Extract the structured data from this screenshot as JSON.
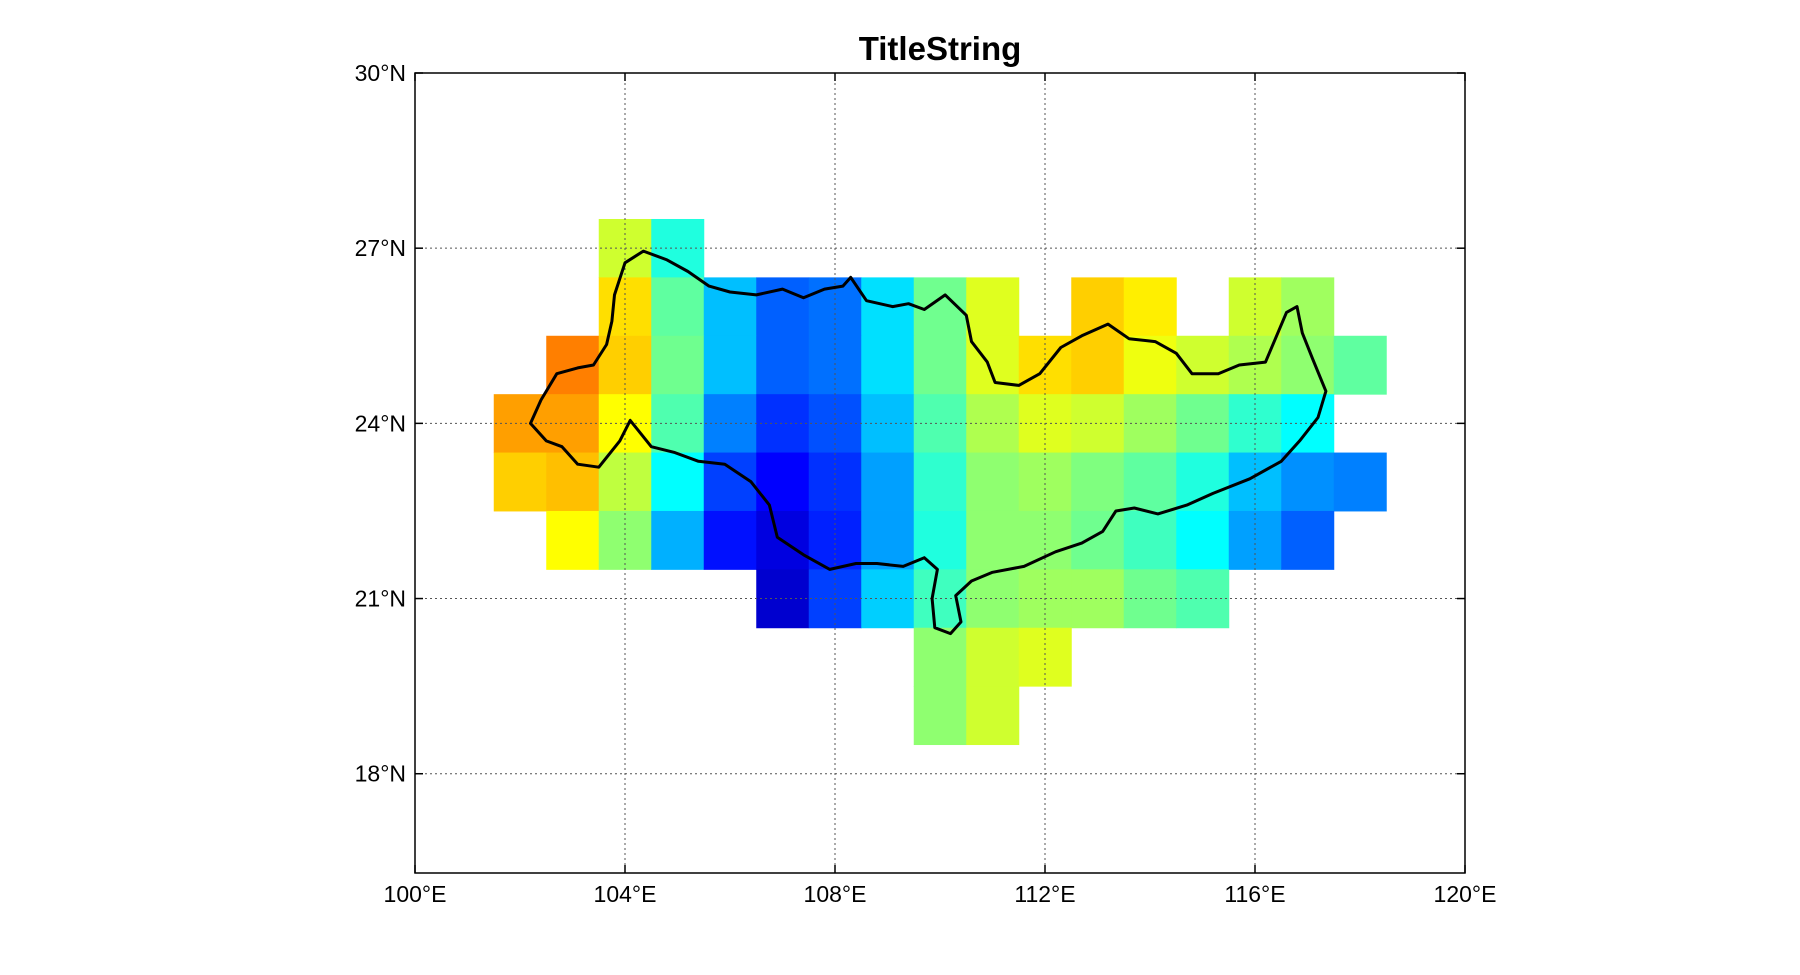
{
  "chart_data": {
    "type": "heatmap",
    "title": "TitleString",
    "xlim": [
      100,
      120
    ],
    "ylim": [
      16.3,
      30
    ],
    "xticks": [
      100,
      104,
      108,
      112,
      116,
      120
    ],
    "xtick_labels": [
      "100°E",
      "104°E",
      "108°E",
      "112°E",
      "116°E",
      "120°E"
    ],
    "yticks": [
      18,
      21,
      24,
      27,
      30
    ],
    "ytick_labels": [
      "18°N",
      "21°N",
      "24°N",
      "27°N",
      "30°N"
    ],
    "grid": true,
    "cell_size_deg": 1,
    "colormap": "jet",
    "cells": [
      {
        "lon": 104,
        "lat": 27,
        "color": "#cfff2f"
      },
      {
        "lon": 105,
        "lat": 27,
        "color": "#1fffdf"
      },
      {
        "lon": 104,
        "lat": 26,
        "color": "#ffdf00"
      },
      {
        "lon": 105,
        "lat": 26,
        "color": "#5fffa0"
      },
      {
        "lon": 106,
        "lat": 26,
        "color": "#00bfff"
      },
      {
        "lon": 107,
        "lat": 26,
        "color": "#0060ff"
      },
      {
        "lon": 108,
        "lat": 26,
        "color": "#0070ff"
      },
      {
        "lon": 109,
        "lat": 26,
        "color": "#00e0ff"
      },
      {
        "lon": 110,
        "lat": 26,
        "color": "#70ff8f"
      },
      {
        "lon": 111,
        "lat": 26,
        "color": "#dfff1f"
      },
      {
        "lon": 113,
        "lat": 26,
        "color": "#ffcf00"
      },
      {
        "lon": 114,
        "lat": 26,
        "color": "#ffef00"
      },
      {
        "lon": 116,
        "lat": 26,
        "color": "#cfff2f"
      },
      {
        "lon": 117,
        "lat": 26,
        "color": "#a0ff5f"
      },
      {
        "lon": 103,
        "lat": 25,
        "color": "#ff7f00"
      },
      {
        "lon": 104,
        "lat": 25,
        "color": "#ffcf00"
      },
      {
        "lon": 105,
        "lat": 25,
        "color": "#6fff8f"
      },
      {
        "lon": 106,
        "lat": 25,
        "color": "#00bfff"
      },
      {
        "lon": 107,
        "lat": 25,
        "color": "#0060ff"
      },
      {
        "lon": 108,
        "lat": 25,
        "color": "#0070ff"
      },
      {
        "lon": 109,
        "lat": 25,
        "color": "#00e0ff"
      },
      {
        "lon": 110,
        "lat": 25,
        "color": "#70ff8f"
      },
      {
        "lon": 111,
        "lat": 25,
        "color": "#dfff1f"
      },
      {
        "lon": 112,
        "lat": 25,
        "color": "#ffdf00"
      },
      {
        "lon": 113,
        "lat": 25,
        "color": "#ffcf00"
      },
      {
        "lon": 114,
        "lat": 25,
        "color": "#efff0f"
      },
      {
        "lon": 115,
        "lat": 25,
        "color": "#cfff2f"
      },
      {
        "lon": 116,
        "lat": 25,
        "color": "#afff4f"
      },
      {
        "lon": 117,
        "lat": 25,
        "color": "#8fff70"
      },
      {
        "lon": 118,
        "lat": 25,
        "color": "#5fffa0"
      },
      {
        "lon": 102,
        "lat": 24,
        "color": "#ff9f00"
      },
      {
        "lon": 103,
        "lat": 24,
        "color": "#ff9f00"
      },
      {
        "lon": 104,
        "lat": 24,
        "color": "#ffff00"
      },
      {
        "lon": 105,
        "lat": 24,
        "color": "#4fffaf"
      },
      {
        "lon": 106,
        "lat": 24,
        "color": "#0080ff"
      },
      {
        "lon": 107,
        "lat": 24,
        "color": "#0030ff"
      },
      {
        "lon": 108,
        "lat": 24,
        "color": "#0050ff"
      },
      {
        "lon": 109,
        "lat": 24,
        "color": "#00bfff"
      },
      {
        "lon": 110,
        "lat": 24,
        "color": "#4fffaf"
      },
      {
        "lon": 111,
        "lat": 24,
        "color": "#afff4f"
      },
      {
        "lon": 112,
        "lat": 24,
        "color": "#dfff1f"
      },
      {
        "lon": 113,
        "lat": 24,
        "color": "#cfff2f"
      },
      {
        "lon": 114,
        "lat": 24,
        "color": "#9fff5f"
      },
      {
        "lon": 115,
        "lat": 24,
        "color": "#6fff8f"
      },
      {
        "lon": 116,
        "lat": 24,
        "color": "#2fffcf"
      },
      {
        "lon": 117,
        "lat": 24,
        "color": "#00ffff"
      },
      {
        "lon": 102,
        "lat": 23,
        "color": "#ffcf00"
      },
      {
        "lon": 103,
        "lat": 23,
        "color": "#ffbf00"
      },
      {
        "lon": 104,
        "lat": 23,
        "color": "#bfff3f"
      },
      {
        "lon": 105,
        "lat": 23,
        "color": "#00ffff"
      },
      {
        "lon": 106,
        "lat": 23,
        "color": "#0040ff"
      },
      {
        "lon": 107,
        "lat": 23,
        "color": "#0000ff"
      },
      {
        "lon": 108,
        "lat": 23,
        "color": "#0030ff"
      },
      {
        "lon": 109,
        "lat": 23,
        "color": "#00a0ff"
      },
      {
        "lon": 110,
        "lat": 23,
        "color": "#2fffcf"
      },
      {
        "lon": 111,
        "lat": 23,
        "color": "#8fff70"
      },
      {
        "lon": 112,
        "lat": 23,
        "color": "#9fff5f"
      },
      {
        "lon": 113,
        "lat": 23,
        "color": "#7fff7f"
      },
      {
        "lon": 114,
        "lat": 23,
        "color": "#5fffa0"
      },
      {
        "lon": 115,
        "lat": 23,
        "color": "#1fffdf"
      },
      {
        "lon": 116,
        "lat": 23,
        "color": "#00bfff"
      },
      {
        "lon": 117,
        "lat": 23,
        "color": "#0090ff"
      },
      {
        "lon": 118,
        "lat": 23,
        "color": "#0080ff"
      },
      {
        "lon": 103,
        "lat": 22,
        "color": "#ffff00"
      },
      {
        "lon": 104,
        "lat": 22,
        "color": "#8fff70"
      },
      {
        "lon": 105,
        "lat": 22,
        "color": "#00b0ff"
      },
      {
        "lon": 106,
        "lat": 22,
        "color": "#0010ff"
      },
      {
        "lon": 107,
        "lat": 22,
        "color": "#0000e0"
      },
      {
        "lon": 108,
        "lat": 22,
        "color": "#0020ff"
      },
      {
        "lon": 109,
        "lat": 22,
        "color": "#009fff"
      },
      {
        "lon": 110,
        "lat": 22,
        "color": "#1fffdf"
      },
      {
        "lon": 111,
        "lat": 22,
        "color": "#8fff70"
      },
      {
        "lon": 112,
        "lat": 22,
        "color": "#8fff70"
      },
      {
        "lon": 113,
        "lat": 22,
        "color": "#6fff8f"
      },
      {
        "lon": 114,
        "lat": 22,
        "color": "#3fffbf"
      },
      {
        "lon": 115,
        "lat": 22,
        "color": "#00ffff"
      },
      {
        "lon": 116,
        "lat": 22,
        "color": "#00a0ff"
      },
      {
        "lon": 117,
        "lat": 22,
        "color": "#0060ff"
      },
      {
        "lon": 107,
        "lat": 21,
        "color": "#0000cf"
      },
      {
        "lon": 108,
        "lat": 21,
        "color": "#0040ff"
      },
      {
        "lon": 109,
        "lat": 21,
        "color": "#00cfff"
      },
      {
        "lon": 110,
        "lat": 21,
        "color": "#3fffbf"
      },
      {
        "lon": 111,
        "lat": 21,
        "color": "#8fff70"
      },
      {
        "lon": 112,
        "lat": 21,
        "color": "#9fff5f"
      },
      {
        "lon": 113,
        "lat": 21,
        "color": "#9fff5f"
      },
      {
        "lon": 114,
        "lat": 21,
        "color": "#6fff8f"
      },
      {
        "lon": 115,
        "lat": 21,
        "color": "#4fffaf"
      },
      {
        "lon": 110,
        "lat": 20,
        "color": "#8fff70"
      },
      {
        "lon": 111,
        "lat": 20,
        "color": "#cfff2f"
      },
      {
        "lon": 112,
        "lat": 20,
        "color": "#dfff1f"
      },
      {
        "lon": 110,
        "lat": 19,
        "color": "#8fff70"
      },
      {
        "lon": 111,
        "lat": 19,
        "color": "#cfff2f"
      }
    ],
    "boundary": [
      [
        104.0,
        26.75
      ],
      [
        104.35,
        26.95
      ],
      [
        104.8,
        26.8
      ],
      [
        105.2,
        26.6
      ],
      [
        105.6,
        26.35
      ],
      [
        106.0,
        26.25
      ],
      [
        106.5,
        26.2
      ],
      [
        107.0,
        26.3
      ],
      [
        107.4,
        26.15
      ],
      [
        107.8,
        26.3
      ],
      [
        108.15,
        26.35
      ],
      [
        108.3,
        26.5
      ],
      [
        108.6,
        26.1
      ],
      [
        109.1,
        26.0
      ],
      [
        109.4,
        26.05
      ],
      [
        109.7,
        25.95
      ],
      [
        110.1,
        26.2
      ],
      [
        110.5,
        25.85
      ],
      [
        110.6,
        25.4
      ],
      [
        110.9,
        25.05
      ],
      [
        111.05,
        24.7
      ],
      [
        111.5,
        24.65
      ],
      [
        111.9,
        24.85
      ],
      [
        112.3,
        25.3
      ],
      [
        112.7,
        25.5
      ],
      [
        113.2,
        25.7
      ],
      [
        113.6,
        25.45
      ],
      [
        114.1,
        25.4
      ],
      [
        114.5,
        25.2
      ],
      [
        114.8,
        24.85
      ],
      [
        115.3,
        24.85
      ],
      [
        115.7,
        25.0
      ],
      [
        116.2,
        25.05
      ],
      [
        116.6,
        25.9
      ],
      [
        116.8,
        26.0
      ],
      [
        116.9,
        25.55
      ],
      [
        117.1,
        25.1
      ],
      [
        117.35,
        24.55
      ],
      [
        117.2,
        24.1
      ],
      [
        116.85,
        23.7
      ],
      [
        116.5,
        23.35
      ],
      [
        115.9,
        23.05
      ],
      [
        115.2,
        22.8
      ],
      [
        114.7,
        22.6
      ],
      [
        114.15,
        22.45
      ],
      [
        113.7,
        22.55
      ],
      [
        113.35,
        22.5
      ],
      [
        113.1,
        22.15
      ],
      [
        112.7,
        21.95
      ],
      [
        112.2,
        21.8
      ],
      [
        111.6,
        21.55
      ],
      [
        111.0,
        21.45
      ],
      [
        110.6,
        21.3
      ],
      [
        110.3,
        21.05
      ],
      [
        110.4,
        20.6
      ],
      [
        110.2,
        20.4
      ],
      [
        109.9,
        20.5
      ],
      [
        109.85,
        21.0
      ],
      [
        109.95,
        21.5
      ],
      [
        109.7,
        21.7
      ],
      [
        109.3,
        21.55
      ],
      [
        108.8,
        21.6
      ],
      [
        108.4,
        21.6
      ],
      [
        107.9,
        21.5
      ],
      [
        107.4,
        21.75
      ],
      [
        106.9,
        22.05
      ],
      [
        106.75,
        22.6
      ],
      [
        106.4,
        23.0
      ],
      [
        105.9,
        23.3
      ],
      [
        105.4,
        23.35
      ],
      [
        104.95,
        23.5
      ],
      [
        104.5,
        23.6
      ],
      [
        104.1,
        24.05
      ],
      [
        103.9,
        23.7
      ],
      [
        103.5,
        23.25
      ],
      [
        103.1,
        23.3
      ],
      [
        102.8,
        23.6
      ],
      [
        102.5,
        23.7
      ],
      [
        102.2,
        24.0
      ],
      [
        102.4,
        24.4
      ],
      [
        102.7,
        24.85
      ],
      [
        103.1,
        24.95
      ],
      [
        103.4,
        25.0
      ],
      [
        103.65,
        25.35
      ],
      [
        103.75,
        25.75
      ],
      [
        103.8,
        26.2
      ],
      [
        104.0,
        26.75
      ]
    ]
  }
}
